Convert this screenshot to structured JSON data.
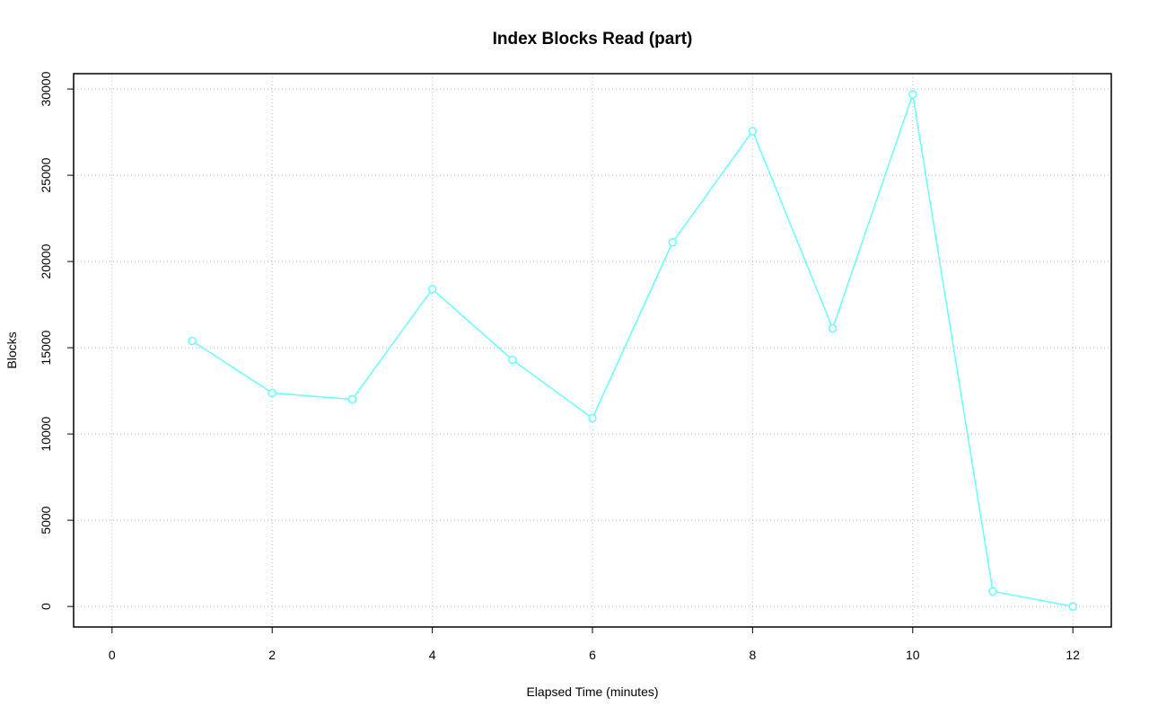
{
  "chart_data": {
    "type": "line",
    "title": "Index Blocks Read (part)",
    "x_label": "Elapsed Time (minutes)",
    "y_label": "Blocks",
    "x": [
      1,
      2,
      3,
      4,
      5,
      6,
      7,
      8,
      9,
      10,
      11,
      12
    ],
    "series": [
      {
        "color": "#66ffff",
        "values": [
          15400,
          12380,
          12010,
          18400,
          14300,
          10920,
          21110,
          27560,
          16120,
          29690,
          880,
          0
        ]
      }
    ],
    "xlim": [
      -0.48,
      12.48
    ],
    "xticks": [
      0,
      2,
      4,
      6,
      8,
      10,
      12
    ],
    "ylim": [
      -1190,
      30890
    ],
    "yticks": [
      0,
      5000,
      10000,
      15000,
      20000,
      25000,
      30000
    ],
    "grid": true
  }
}
